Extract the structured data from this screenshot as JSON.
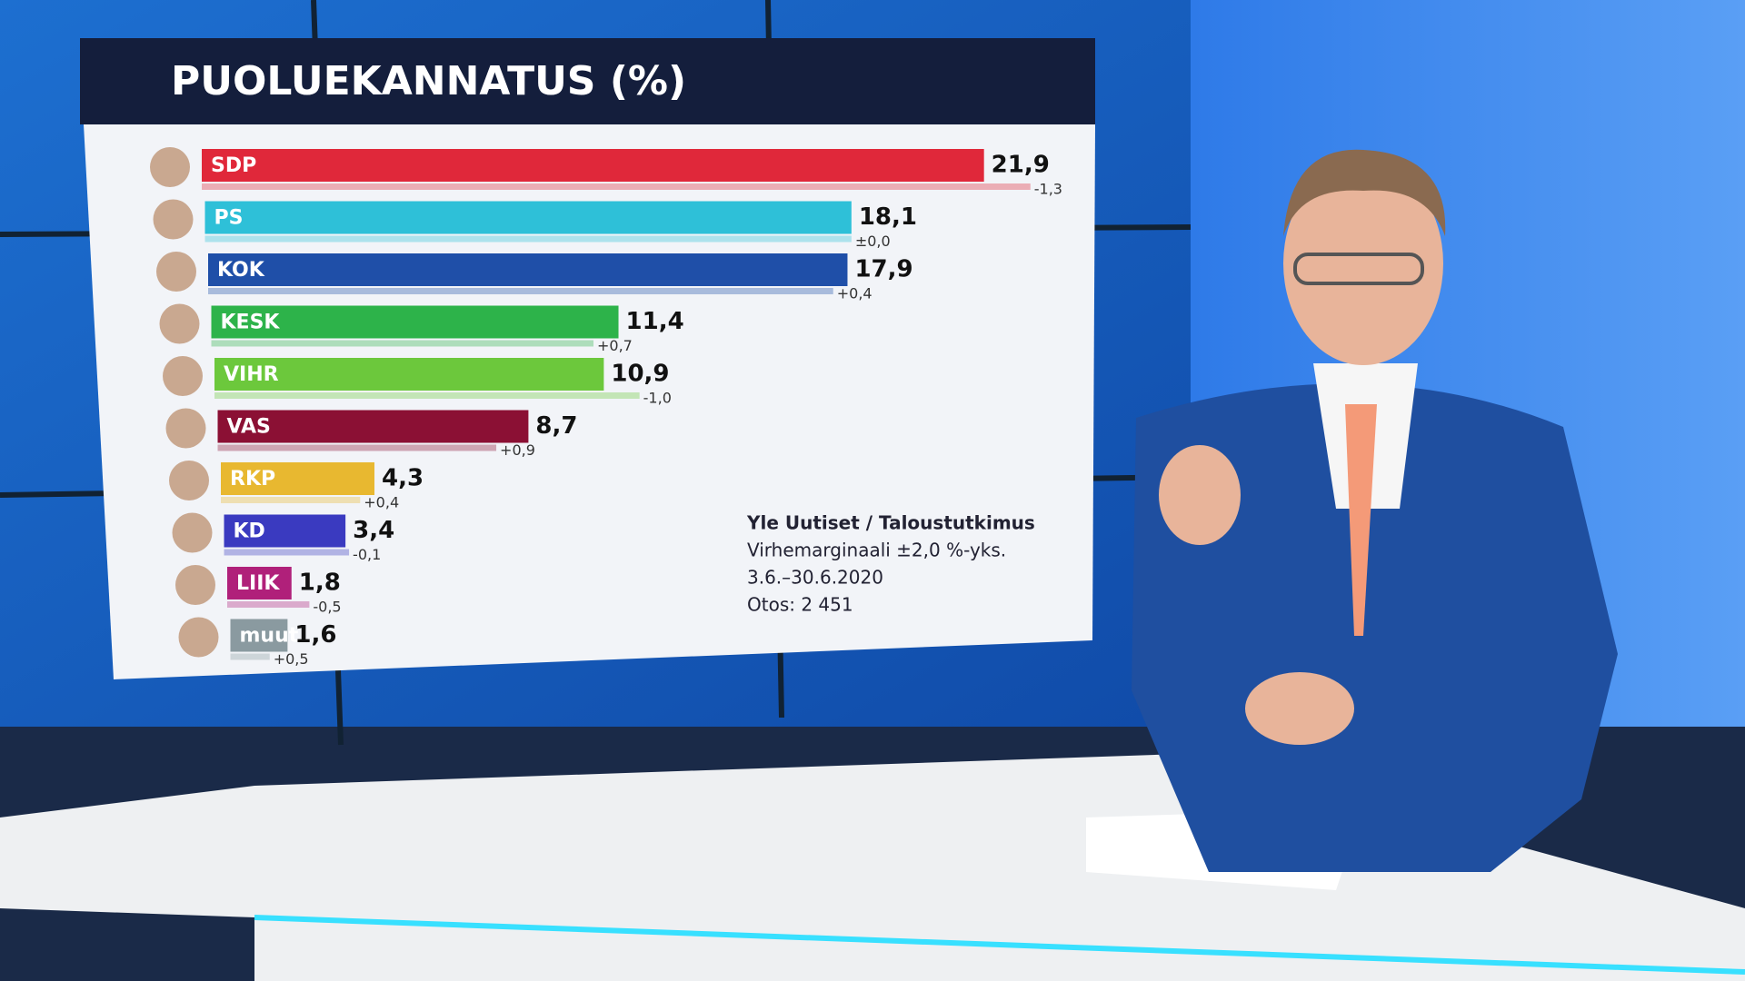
{
  "chart_data": {
    "type": "bar",
    "orientation": "horizontal",
    "title": "PUOLUEKANNATUS (%)",
    "categories": [
      "SDP",
      "PS",
      "KOK",
      "KESK",
      "VIHR",
      "VAS",
      "RKP",
      "KD",
      "LIIK",
      "muut"
    ],
    "values": [
      21.9,
      18.1,
      17.9,
      11.4,
      10.9,
      8.7,
      4.3,
      3.4,
      1.8,
      1.6
    ],
    "value_labels": [
      "21,9",
      "18,1",
      "17,9",
      "11,4",
      "10,9",
      "8,7",
      "4,3",
      "3,4",
      "1,8",
      "1,6"
    ],
    "changes": [
      -1.3,
      0,
      0.4,
      0.7,
      -1.0,
      0.9,
      0.4,
      -0.1,
      -0.5,
      0.5
    ],
    "change_labels": [
      "-1,3",
      "±0,0",
      "+0,4",
      "+0,7",
      "-1,0",
      "+0,9",
      "+0,4",
      "-0,1",
      "-0,5",
      "+0,5"
    ],
    "colors": [
      "#e0283a",
      "#2ec0d8",
      "#1f4fa8",
      "#2db34a",
      "#6cc83c",
      "#8b1034",
      "#e8b830",
      "#3a3ac0",
      "#b0207a",
      "#8a9aa0"
    ],
    "annotations": [
      "Yle Uutiset / Taloustutkimus",
      "Virhemarginaali ±2,0 %-yks.",
      "3.6.–30.6.2020",
      "Otos: 2 451"
    ]
  }
}
